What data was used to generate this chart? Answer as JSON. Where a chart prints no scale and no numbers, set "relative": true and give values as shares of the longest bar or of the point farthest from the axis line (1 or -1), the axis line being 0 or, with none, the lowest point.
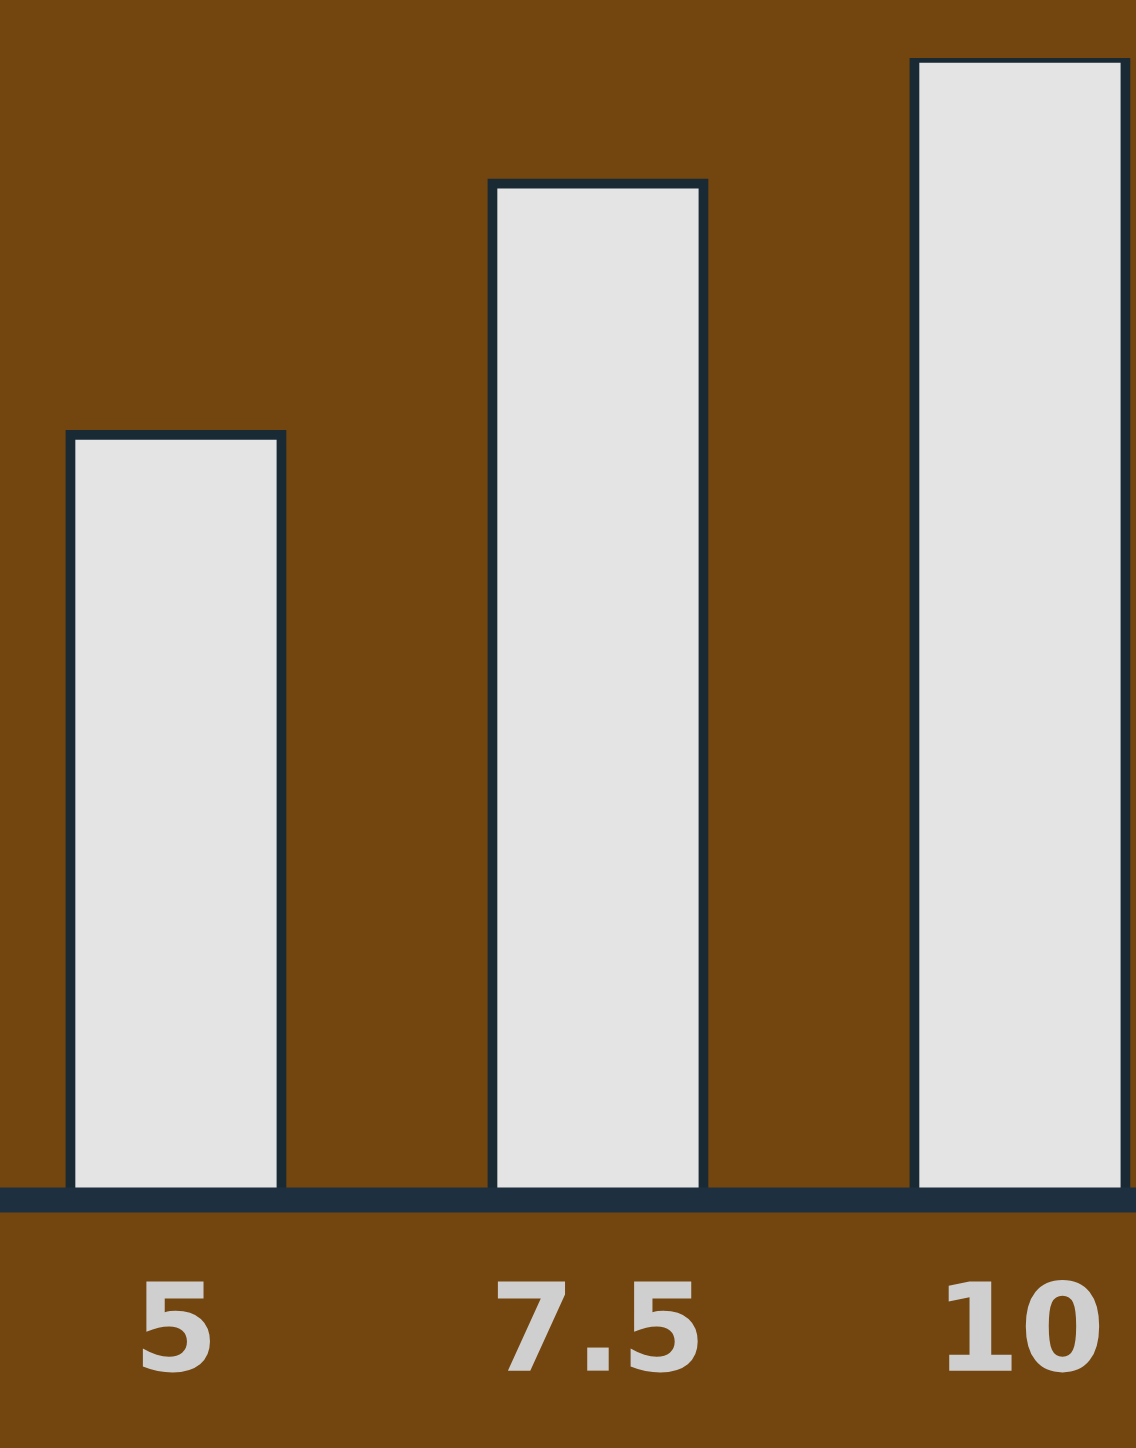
{
  "chart_data": {
    "type": "bar",
    "relative": true,
    "categories": [
      "5",
      "7.5",
      "10"
    ],
    "values": [
      0.67,
      0.89,
      1.0
    ],
    "color": "#e4e4e4",
    "grid": false,
    "legend": false
  }
}
